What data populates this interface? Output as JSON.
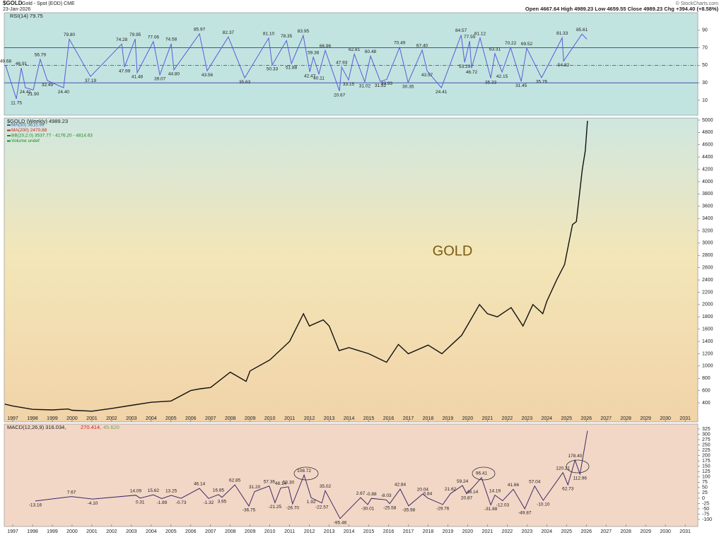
{
  "header": {
    "symbol": "$GOLD",
    "name": "Gold - Spot (EOD) CME",
    "date": "23-Jan-2026",
    "quote": "Open 4667.64 High 4989.23 Low 4659.55 Close 4989.23 Chg +394.40 (+8.58%)",
    "credit": "© StockCharts.com"
  },
  "chart_data": [
    {
      "type": "line",
      "title": "RSI(14) 79.75",
      "xlim": [
        1996.57,
        2031.64
      ],
      "ylim": [
        -7,
        110
      ],
      "yticks": [
        10,
        30,
        50,
        70,
        90
      ],
      "hlines": [
        30,
        70
      ],
      "dashed_hlines": [
        50
      ],
      "series": [
        {
          "color": "#5a5adc",
          "x": [
            1996.64,
            1997.18,
            1997.43,
            1997.64,
            1998.04,
            1998.39,
            1998.75,
            1999.57,
            1999.86,
            2000.93,
            2002.51,
            2002.65,
            2003.19,
            2003.29,
            2004.11,
            2004.44,
            2005.01,
            2005.15,
            2006.44,
            2006.83,
            2007.9,
            2008.73,
            2009.94,
            2010.12,
            2010.84,
            2011.09,
            2011.69,
            2012.02,
            2012.2,
            2012.48,
            2012.8,
            2013.52,
            2013.63,
            2013.98,
            2014.27,
            2014.8,
            2015.09,
            2015.59,
            2015.91,
            2016.56,
            2016.99,
            2017.7,
            2017.95,
            2018.67,
            2019.67,
            2019.85,
            2020.1,
            2020.2,
            2020.63,
            2021.17,
            2021.38,
            2021.74,
            2022.17,
            2022.71,
            2022.99,
            2023.74,
            2024.78,
            2024.85,
            2025.78,
            2026.03
          ],
          "values": [
            49.68,
            11.75,
            46.91,
            24.41,
            21.9,
            56.79,
            32.49,
            24.4,
            79.8,
            37.19,
            74.28,
            47.99,
            79.95,
            41.48,
            77.06,
            39.07,
            74.58,
            44.8,
            85.97,
            43.56,
            82.37,
            35.63,
            81.1,
            50.33,
            78.35,
            51.88,
            83.95,
            42.47,
            59.36,
            40.11,
            66.96,
            20.67,
            47.93,
            33.15,
            62.81,
            31.02,
            60.48,
            31.52,
            33.93,
            70.49,
            30.35,
            67.4,
            43.57,
            24.41,
            84.57,
            53.29,
            77.55,
            46.72,
            81.12,
            35.33,
            63.31,
            42.15,
            70.22,
            31.45,
            69.52,
            35.76,
            81.33,
            54.82,
            85.61,
            79.75
          ],
          "value_labels": [
            "49.68",
            "11.75",
            "46.91",
            "24.41",
            "21.90",
            "56.79",
            "32.49",
            "24.40",
            "79.80",
            "37.19",
            "74.28",
            "47.99",
            "79.95",
            "41.48",
            "77.06",
            "39.07",
            "74.58",
            "44.80",
            "85.97",
            "43.56",
            "82.37",
            "35.63",
            "81.10",
            "50.33",
            "78.35",
            "51.88",
            "83.95",
            "42.47",
            "59.36",
            "40.11",
            "66.96",
            "20.67",
            "47.93",
            "33.15",
            "62.81",
            "31.02",
            "60.48",
            "31.52",
            "33.93",
            "70.49",
            "30.35",
            "67.40",
            "43.57",
            "24.41",
            "84.57",
            "53.29",
            "77.55",
            "46.72",
            "81.12",
            "35.33",
            "63.31",
            "42.15",
            "70.22",
            "31.45",
            "69.52",
            "35.76",
            "81.33",
            "54.82",
            "85.61",
            null
          ]
        }
      ]
    },
    {
      "type": "line",
      "title": "$GOLD (Weekly) 4989.23",
      "annotation": "GOLD",
      "legend": [
        {
          "text": "MA(50) 3615.99",
          "color": "#3355aa"
        },
        {
          "text": "MA(200) 2470.88",
          "color": "#cc2222"
        },
        {
          "text": "BB(20,2.0) 3537.77 - 4176.20 - 4814.63",
          "color": "#228822"
        },
        {
          "text": "Volume undef",
          "color": "#228822"
        }
      ],
      "xlim": [
        1996.57,
        2031.64
      ],
      "xticks": [
        1997,
        1998,
        1999,
        2000,
        2001,
        2002,
        2003,
        2004,
        2005,
        2006,
        2007,
        2008,
        2009,
        2010,
        2011,
        2012,
        2013,
        2014,
        2015,
        2016,
        2017,
        2018,
        2019,
        2020,
        2021,
        2022,
        2023,
        2024,
        2025,
        2026,
        2027,
        2028,
        2029,
        2030,
        2031
      ],
      "ylim": [
        90,
        5034
      ],
      "yticks": [
        400,
        600,
        800,
        1000,
        1200,
        1400,
        1600,
        1800,
        2000,
        2200,
        2400,
        2600,
        2800,
        3000,
        3200,
        3400,
        3600,
        3800,
        4000,
        4200,
        4400,
        4600,
        4800,
        5000
      ],
      "series": [
        {
          "color": "#111111",
          "x": [
            1996.6,
            1997,
            1998,
            1999,
            1999.8,
            2000,
            2001,
            2002,
            2003,
            2004,
            2005,
            2006,
            2006.5,
            2007,
            2008,
            2008.8,
            2009,
            2010,
            2011,
            2011.7,
            2012,
            2012.7,
            2013,
            2013.5,
            2014,
            2015,
            2015.9,
            2016.5,
            2017,
            2018,
            2018.7,
            2019,
            2019.7,
            2020.6,
            2021,
            2021.5,
            2022.2,
            2022.8,
            2023.3,
            2023.8,
            2024,
            2024.5,
            2024.9,
            2025.3,
            2025.5,
            2025.8,
            2025.95,
            2026.06
          ],
          "values": [
            380,
            350,
            295,
            285,
            300,
            280,
            265,
            310,
            360,
            410,
            430,
            600,
            630,
            650,
            900,
            750,
            920,
            1100,
            1400,
            1850,
            1650,
            1750,
            1650,
            1250,
            1300,
            1200,
            1060,
            1350,
            1200,
            1340,
            1200,
            1290,
            1500,
            2000,
            1850,
            1800,
            1950,
            1650,
            2000,
            1850,
            2050,
            2400,
            2650,
            3300,
            3350,
            4200,
            4500,
            4989.23
          ]
        }
      ]
    },
    {
      "type": "line",
      "title": "MACD(12,26,9) 316.034,",
      "signal_label": "270.414,",
      "hist_label": "45.620",
      "xlim": [
        1996.57,
        2031.64
      ],
      "xticks": [
        1997,
        1998,
        1999,
        2000,
        2001,
        2002,
        2003,
        2004,
        2005,
        2006,
        2007,
        2008,
        2009,
        2010,
        2011,
        2012,
        2013,
        2014,
        2015,
        2016,
        2017,
        2018,
        2019,
        2020,
        2021,
        2022,
        2023,
        2024,
        2025,
        2026,
        2027,
        2028,
        2029,
        2030,
        2031
      ],
      "ylim": [
        -133,
        348
      ],
      "yticks": [
        -100,
        -75,
        -50,
        -25,
        0,
        25,
        50,
        75,
        100,
        125,
        150,
        175,
        200,
        225,
        250,
        275,
        300,
        325
      ],
      "series": [
        {
          "color": "#3a2a6a",
          "x": [
            1998.14,
            1999.97,
            2001.04,
            2003.22,
            2003.44,
            2004.11,
            2004.54,
            2005.01,
            2005.51,
            2006.44,
            2006.9,
            2007.4,
            2007.58,
            2008.23,
            2008.94,
            2009.23,
            2009.97,
            2010.26,
            2010.55,
            2010.94,
            2011.15,
            2011.73,
            2012.09,
            2012.63,
            2012.8,
            2013.55,
            2014.59,
            2014.95,
            2015.13,
            2015.88,
            2016.06,
            2016.59,
            2017.02,
            2017.73,
            2017.98,
            2018.74,
            2019.13,
            2019.74,
            2019.95,
            2020.24,
            2020.7,
            2021.17,
            2021.38,
            2021.77,
            2022.31,
            2022.89,
            2023.39,
            2023.82,
            2024.82,
            2025.07,
            2025.43,
            2025.68,
            2026.06
          ],
          "values": [
            -13.16,
            7.67,
            -4.1,
            14.09,
            0.31,
            15.62,
            -1.89,
            13.25,
            -0.73,
            46.14,
            -1.32,
            16.85,
            3.95,
            62.85,
            -36.75,
            31.2,
            57.36,
            -21.25,
            48.14,
            53.3,
            -26.7,
            108.72,
            1.92,
            -22.57,
            35.02,
            -95.46,
            2.67,
            -30.01,
            -0.88,
            -8.03,
            -25.58,
            42.84,
            -35.98,
            20.04,
            0.84,
            -29.76,
            21.62,
            59.24,
            20.87,
            48.14,
            96.41,
            -31.88,
            14.19,
            -12.03,
            41.66,
            -49.87,
            57.04,
            -10.1,
            120.21,
            62.73,
            178.4,
            112.96,
            316.034
          ],
          "value_labels": [
            "-13.16",
            "7.67",
            "-4.10",
            "14.09",
            "0.31",
            "15.62",
            "-1.89",
            "13.25",
            "-0.73",
            "46.14",
            "-1.32",
            "16.85",
            "3.95",
            "62.85",
            "-36.75",
            "31.20",
            "57.36",
            "-21.25",
            "48.14",
            "53.30",
            "-26.70",
            "108.72",
            "1.92",
            "-22.57",
            "35.02",
            "-95.46",
            "2.67",
            "-30.01",
            "-0.88",
            "-8.03",
            "-25.58",
            "42.84",
            "-35.98",
            "20.04",
            "0.84",
            "-29.76",
            "21.62",
            "59.24",
            "20.87",
            "48.14",
            "96.41",
            "-31.88",
            "14.19",
            "-12.03",
            "41.66",
            "-49.87",
            "57.04",
            "-10.10",
            "120.21",
            "62.73",
            "178.40",
            "112.96",
            null
          ]
        }
      ]
    }
  ]
}
